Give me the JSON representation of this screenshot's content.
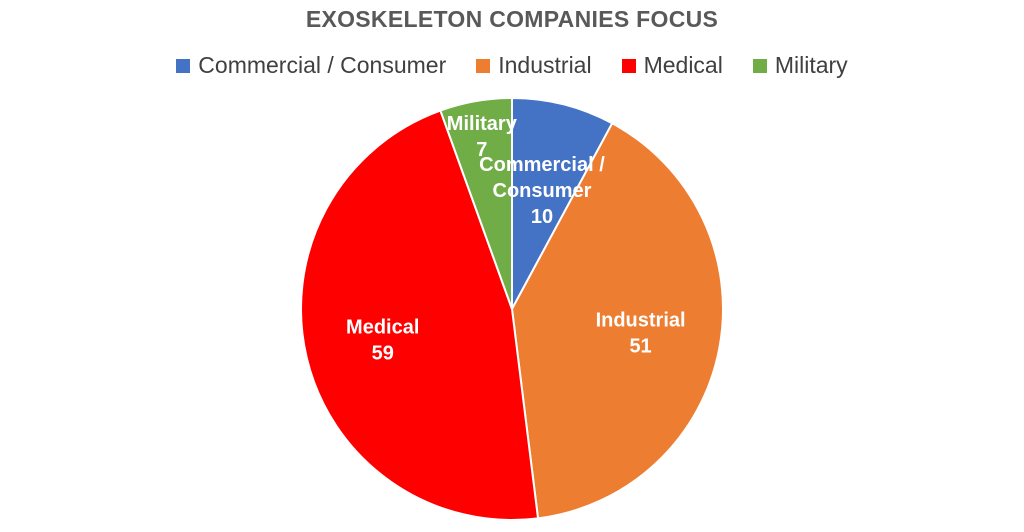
{
  "chart_data": {
    "type": "pie",
    "title": "EXOSKELETON COMPANIES FOCUS",
    "legend_position": "top",
    "categories": [
      "Commercial / Consumer",
      "Industrial",
      "Medical",
      "Military"
    ],
    "values": [
      10,
      51,
      59,
      7
    ],
    "colors": [
      "#4472C4",
      "#ED7D31",
      "#FF0000",
      "#70AD47"
    ],
    "data_labels": [
      {
        "name_lines": [
          "Commercial /",
          "Consumer"
        ],
        "value": "10"
      },
      {
        "name_lines": [
          "Industrial"
        ],
        "value": "51"
      },
      {
        "name_lines": [
          "Medical"
        ],
        "value": "59"
      },
      {
        "name_lines": [
          "Military"
        ],
        "value": "7"
      }
    ]
  }
}
